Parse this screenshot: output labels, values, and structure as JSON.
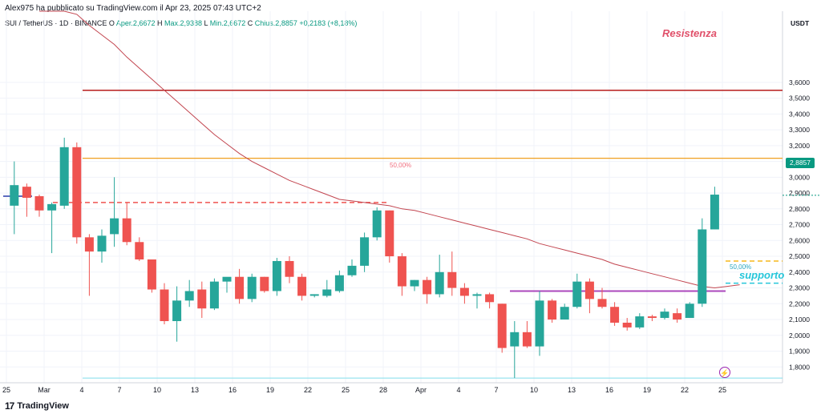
{
  "header": {
    "published_by": "Alex975 ha pubblicato su TradingView.com il Apr 23, 2025 07:43 UTC+2"
  },
  "symbol": {
    "name": "SUI / TetherUS · 1D · BINANCE",
    "open_label": "O",
    "open_value": "Aper.2,6672",
    "high_label": "H",
    "high_value": "Max.2,9388",
    "low_label": "L",
    "low_value": "Min.2,6672",
    "close_label": "C",
    "close_value": "Chius.2,8857",
    "change_value": "+0,2183 (+8,18%)"
  },
  "currency": "USDT",
  "last_price": "2,8857",
  "annotations": {
    "resistance_label": "Resistenza",
    "support_label": "supporto",
    "fib_top": "50,00%",
    "fib_bottom": "50,00%"
  },
  "footer": {
    "brand": "TradingView"
  },
  "colors": {
    "up": "#26a69a",
    "down": "#ef5350",
    "ma": "#c2454f",
    "resistance": "#b71c1c",
    "orange": "#f0a020",
    "dashed_red": "#ef5350",
    "purple": "#ab47bc",
    "cyan": "#26c6da",
    "yellow_dashed": "#f5b81c"
  },
  "chart_data": {
    "type": "candlestick",
    "ylim": [
      1.7,
      4.05
    ],
    "y_ticks": [
      "1,8000",
      "1,9000",
      "2,0000",
      "2,1000",
      "2,2000",
      "2,3000",
      "2,4000",
      "2,5000",
      "2,6000",
      "2,7000",
      "2,8000",
      "2,9000",
      "3,0000",
      "3,1000",
      "3,2000",
      "3,3000",
      "3,4000",
      "3,5000",
      "3,6000"
    ],
    "x_ticks": [
      "25",
      "Mar",
      "4",
      "7",
      "10",
      "13",
      "16",
      "19",
      "22",
      "25",
      "28",
      "Apr",
      "4",
      "7",
      "10",
      "13",
      "16",
      "19",
      "22",
      "25"
    ],
    "candles": [
      {
        "o": 2.82,
        "h": 3.1,
        "l": 2.64,
        "c": 2.95
      },
      {
        "o": 2.94,
        "h": 2.96,
        "l": 2.75,
        "c": 2.87
      },
      {
        "o": 2.88,
        "h": 2.89,
        "l": 2.75,
        "c": 2.79
      },
      {
        "o": 2.79,
        "h": 2.84,
        "l": 2.52,
        "c": 2.83
      },
      {
        "o": 2.82,
        "h": 3.25,
        "l": 2.8,
        "c": 3.19
      },
      {
        "o": 3.19,
        "h": 3.22,
        "l": 2.58,
        "c": 2.62
      },
      {
        "o": 2.62,
        "h": 2.64,
        "l": 2.25,
        "c": 2.53
      },
      {
        "o": 2.53,
        "h": 2.67,
        "l": 2.46,
        "c": 2.63
      },
      {
        "o": 2.64,
        "h": 3.0,
        "l": 2.56,
        "c": 2.74
      },
      {
        "o": 2.74,
        "h": 2.84,
        "l": 2.57,
        "c": 2.59
      },
      {
        "o": 2.59,
        "h": 2.62,
        "l": 2.47,
        "c": 2.48
      },
      {
        "o": 2.48,
        "h": 2.48,
        "l": 2.27,
        "c": 2.29
      },
      {
        "o": 2.29,
        "h": 2.33,
        "l": 2.07,
        "c": 2.09
      },
      {
        "o": 2.09,
        "h": 2.31,
        "l": 1.96,
        "c": 2.22
      },
      {
        "o": 2.22,
        "h": 2.35,
        "l": 2.18,
        "c": 2.28
      },
      {
        "o": 2.29,
        "h": 2.34,
        "l": 2.11,
        "c": 2.17
      },
      {
        "o": 2.17,
        "h": 2.36,
        "l": 2.16,
        "c": 2.34
      },
      {
        "o": 2.34,
        "h": 2.35,
        "l": 2.27,
        "c": 2.37
      },
      {
        "o": 2.37,
        "h": 2.42,
        "l": 2.2,
        "c": 2.23
      },
      {
        "o": 2.23,
        "h": 2.39,
        "l": 2.21,
        "c": 2.37
      },
      {
        "o": 2.37,
        "h": 2.37,
        "l": 2.27,
        "c": 2.28
      },
      {
        "o": 2.28,
        "h": 2.49,
        "l": 2.25,
        "c": 2.47
      },
      {
        "o": 2.47,
        "h": 2.5,
        "l": 2.33,
        "c": 2.37
      },
      {
        "o": 2.37,
        "h": 2.39,
        "l": 2.22,
        "c": 2.25
      },
      {
        "o": 2.25,
        "h": 2.26,
        "l": 2.24,
        "c": 2.26
      },
      {
        "o": 2.25,
        "h": 2.35,
        "l": 2.24,
        "c": 2.29
      },
      {
        "o": 2.28,
        "h": 2.41,
        "l": 2.27,
        "c": 2.38
      },
      {
        "o": 2.38,
        "h": 2.48,
        "l": 2.37,
        "c": 2.44
      },
      {
        "o": 2.44,
        "h": 2.65,
        "l": 2.4,
        "c": 2.62
      },
      {
        "o": 2.62,
        "h": 2.81,
        "l": 2.6,
        "c": 2.79
      },
      {
        "o": 2.79,
        "h": 2.79,
        "l": 2.46,
        "c": 2.5
      },
      {
        "o": 2.5,
        "h": 2.52,
        "l": 2.25,
        "c": 2.31
      },
      {
        "o": 2.31,
        "h": 2.35,
        "l": 2.28,
        "c": 2.35
      },
      {
        "o": 2.35,
        "h": 2.37,
        "l": 2.2,
        "c": 2.26
      },
      {
        "o": 2.26,
        "h": 2.51,
        "l": 2.24,
        "c": 2.4
      },
      {
        "o": 2.4,
        "h": 2.53,
        "l": 2.25,
        "c": 2.3
      },
      {
        "o": 2.3,
        "h": 2.33,
        "l": 2.2,
        "c": 2.25
      },
      {
        "o": 2.25,
        "h": 2.27,
        "l": 2.17,
        "c": 2.26
      },
      {
        "o": 2.26,
        "h": 2.27,
        "l": 2.17,
        "c": 2.21
      },
      {
        "o": 2.2,
        "h": 2.2,
        "l": 1.89,
        "c": 1.92
      },
      {
        "o": 1.93,
        "h": 2.09,
        "l": 1.73,
        "c": 2.02
      },
      {
        "o": 2.02,
        "h": 2.09,
        "l": 1.92,
        "c": 1.93
      },
      {
        "o": 1.93,
        "h": 2.28,
        "l": 1.87,
        "c": 2.22
      },
      {
        "o": 2.22,
        "h": 2.23,
        "l": 2.08,
        "c": 2.1
      },
      {
        "o": 2.1,
        "h": 2.2,
        "l": 2.1,
        "c": 2.18
      },
      {
        "o": 2.18,
        "h": 2.39,
        "l": 2.17,
        "c": 2.34
      },
      {
        "o": 2.34,
        "h": 2.36,
        "l": 2.14,
        "c": 2.23
      },
      {
        "o": 2.23,
        "h": 2.3,
        "l": 2.17,
        "c": 2.18
      },
      {
        "o": 2.18,
        "h": 2.21,
        "l": 2.06,
        "c": 2.08
      },
      {
        "o": 2.08,
        "h": 2.11,
        "l": 2.03,
        "c": 2.05
      },
      {
        "o": 2.05,
        "h": 2.14,
        "l": 2.04,
        "c": 2.12
      },
      {
        "o": 2.12,
        "h": 2.13,
        "l": 2.09,
        "c": 2.11
      },
      {
        "o": 2.11,
        "h": 2.17,
        "l": 2.1,
        "c": 2.15
      },
      {
        "o": 2.14,
        "h": 2.17,
        "l": 2.08,
        "c": 2.1
      },
      {
        "o": 2.11,
        "h": 2.21,
        "l": 2.11,
        "c": 2.2
      },
      {
        "o": 2.2,
        "h": 2.74,
        "l": 2.18,
        "c": 2.67
      },
      {
        "o": 2.67,
        "h": 2.94,
        "l": 2.67,
        "c": 2.89
      }
    ],
    "ma": [
      4.3,
      4.2,
      4.1,
      4.03,
      3.96,
      3.9,
      3.84,
      3.76,
      3.69,
      3.62,
      3.55,
      3.48,
      3.41,
      3.34,
      3.27,
      3.21,
      3.15,
      3.1,
      3.06,
      3.02,
      2.98,
      2.95,
      2.92,
      2.89,
      2.86,
      2.85,
      2.84,
      2.83,
      2.82,
      2.8,
      2.79,
      2.77,
      2.75,
      2.73,
      2.71,
      2.69,
      2.67,
      2.65,
      2.63,
      2.61,
      2.58,
      2.56,
      2.54,
      2.52,
      2.5,
      2.48,
      2.45,
      2.43,
      2.41,
      2.39,
      2.37,
      2.35,
      2.33,
      2.31,
      2.3,
      2.31,
      2.32
    ],
    "levels": {
      "resistance": 3.55,
      "orange": 3.12,
      "dashed_red": 2.84,
      "support_purple": 2.28,
      "cyan_dashed": 2.33,
      "yellow_dashed": 2.47,
      "bottom_cyan": 1.73
    }
  }
}
